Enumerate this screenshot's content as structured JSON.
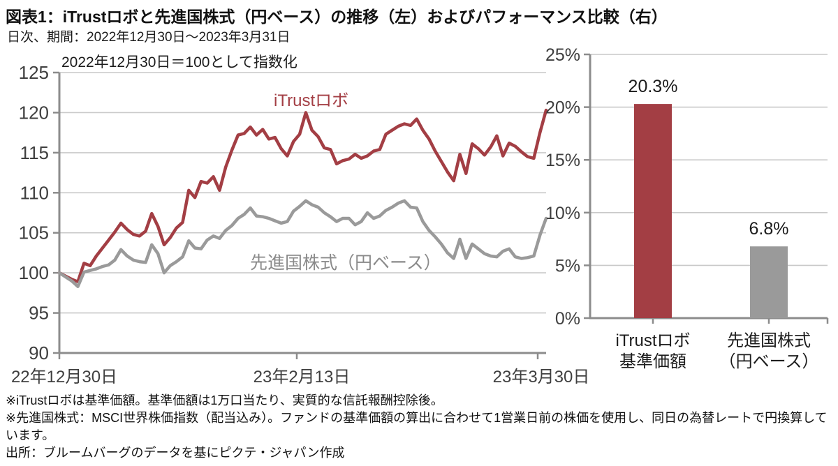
{
  "header": {
    "title": "図表1：iTrustロボと先進国株式（円ベース）の推移（左）およびパフォーマンス比較（右）",
    "subtitle": "日次、期間：2022年12月30日～2023年3月31日"
  },
  "colors": {
    "red": "#A33E44",
    "gray": "#9A9A9A",
    "grid": "#C9C9C9",
    "axis": "#8C8C8C",
    "tick_text": "#3F3F3F",
    "text": "#111111"
  },
  "chart_data": [
    {
      "type": "line",
      "title_note": "2022年12月30日＝100として指数化",
      "x_tick_labels": [
        "22年12月30日",
        "23年2月13日",
        "23年3月30日"
      ],
      "ylim": [
        90,
        125
      ],
      "yticks": [
        90,
        95,
        100,
        105,
        110,
        115,
        120,
        125
      ],
      "grid": true,
      "legend_position": "inline-labels",
      "series": [
        {
          "name": "iTrustロボ",
          "color": "#A33E44",
          "values": [
            100.0,
            99.6,
            99.2,
            98.9,
            101.2,
            100.9,
            102.1,
            103.1,
            104.1,
            105.1,
            106.2,
            105.4,
            104.8,
            104.6,
            105.2,
            107.4,
            105.8,
            103.5,
            104.4,
            105.6,
            106.3,
            110.3,
            109.4,
            111.4,
            111.2,
            112.0,
            110.3,
            113.2,
            115.3,
            117.2,
            117.4,
            118.2,
            117.2,
            117.9,
            116.7,
            116.9,
            115.5,
            114.6,
            116.4,
            117.3,
            120.0,
            117.8,
            117.0,
            115.6,
            115.4,
            113.6,
            114.0,
            114.2,
            114.8,
            114.3,
            114.6,
            115.2,
            115.4,
            117.3,
            117.8,
            118.3,
            118.6,
            118.4,
            119.2,
            117.8,
            116.7,
            115.2,
            113.9,
            112.6,
            111.5,
            114.8,
            112.4,
            116.1,
            115.5,
            114.7,
            115.7,
            117.1,
            114.6,
            116.2,
            115.8,
            115.1,
            114.5,
            114.3,
            117.5,
            120.3
          ]
        },
        {
          "name": "先進国株式（円ベース）",
          "color": "#9A9A9A",
          "values": [
            100.0,
            99.5,
            99.0,
            98.3,
            100.1,
            100.3,
            100.5,
            100.8,
            101.0,
            101.6,
            102.9,
            102.1,
            101.6,
            101.4,
            101.3,
            103.5,
            102.4,
            100.0,
            100.9,
            101.4,
            102.0,
            104.0,
            103.1,
            103.0,
            104.1,
            104.6,
            104.3,
            105.3,
            105.9,
            106.8,
            107.3,
            108.1,
            107.1,
            107.0,
            106.8,
            106.5,
            106.2,
            106.4,
            107.7,
            108.3,
            109.0,
            108.5,
            108.2,
            107.5,
            107.0,
            106.4,
            106.8,
            106.8,
            106.0,
            106.4,
            107.5,
            106.8,
            107.1,
            107.8,
            108.2,
            108.7,
            109.0,
            108.2,
            108.1,
            106.4,
            105.3,
            104.5,
            103.6,
            102.5,
            101.8,
            104.2,
            101.8,
            103.6,
            103.0,
            102.4,
            102.1,
            102.0,
            102.7,
            103.0,
            102.0,
            101.8,
            101.9,
            102.1,
            104.7,
            106.8
          ]
        }
      ]
    },
    {
      "type": "bar",
      "categories": [
        [
          "iTrustロボ",
          "基準価額"
        ],
        [
          "先進国株式",
          "（円ベース）"
        ]
      ],
      "values": [
        20.3,
        6.8
      ],
      "value_labels": [
        "20.3%",
        "6.8%"
      ],
      "bar_colors": [
        "#A33E44",
        "#9A9A9A"
      ],
      "ylim": [
        0,
        25
      ],
      "yticks": [
        0,
        5,
        10,
        15,
        20,
        25
      ],
      "ytick_labels": [
        "0%",
        "5%",
        "10%",
        "15%",
        "20%",
        "25%"
      ],
      "grid": true
    }
  ],
  "footnotes": [
    "※iTrustロボは基準価額。基準価額は1万口当たり、実質的な信託報酬控除後。",
    "※先進国株式：MSCI世界株価指数（配当込み）。ファンドの基準価額の算出に合わせて1営業日前の株価を使用し、同日の為替レートで円換算しています。",
    "出所：ブルームバーグのデータを基にピクテ・ジャパン作成"
  ]
}
